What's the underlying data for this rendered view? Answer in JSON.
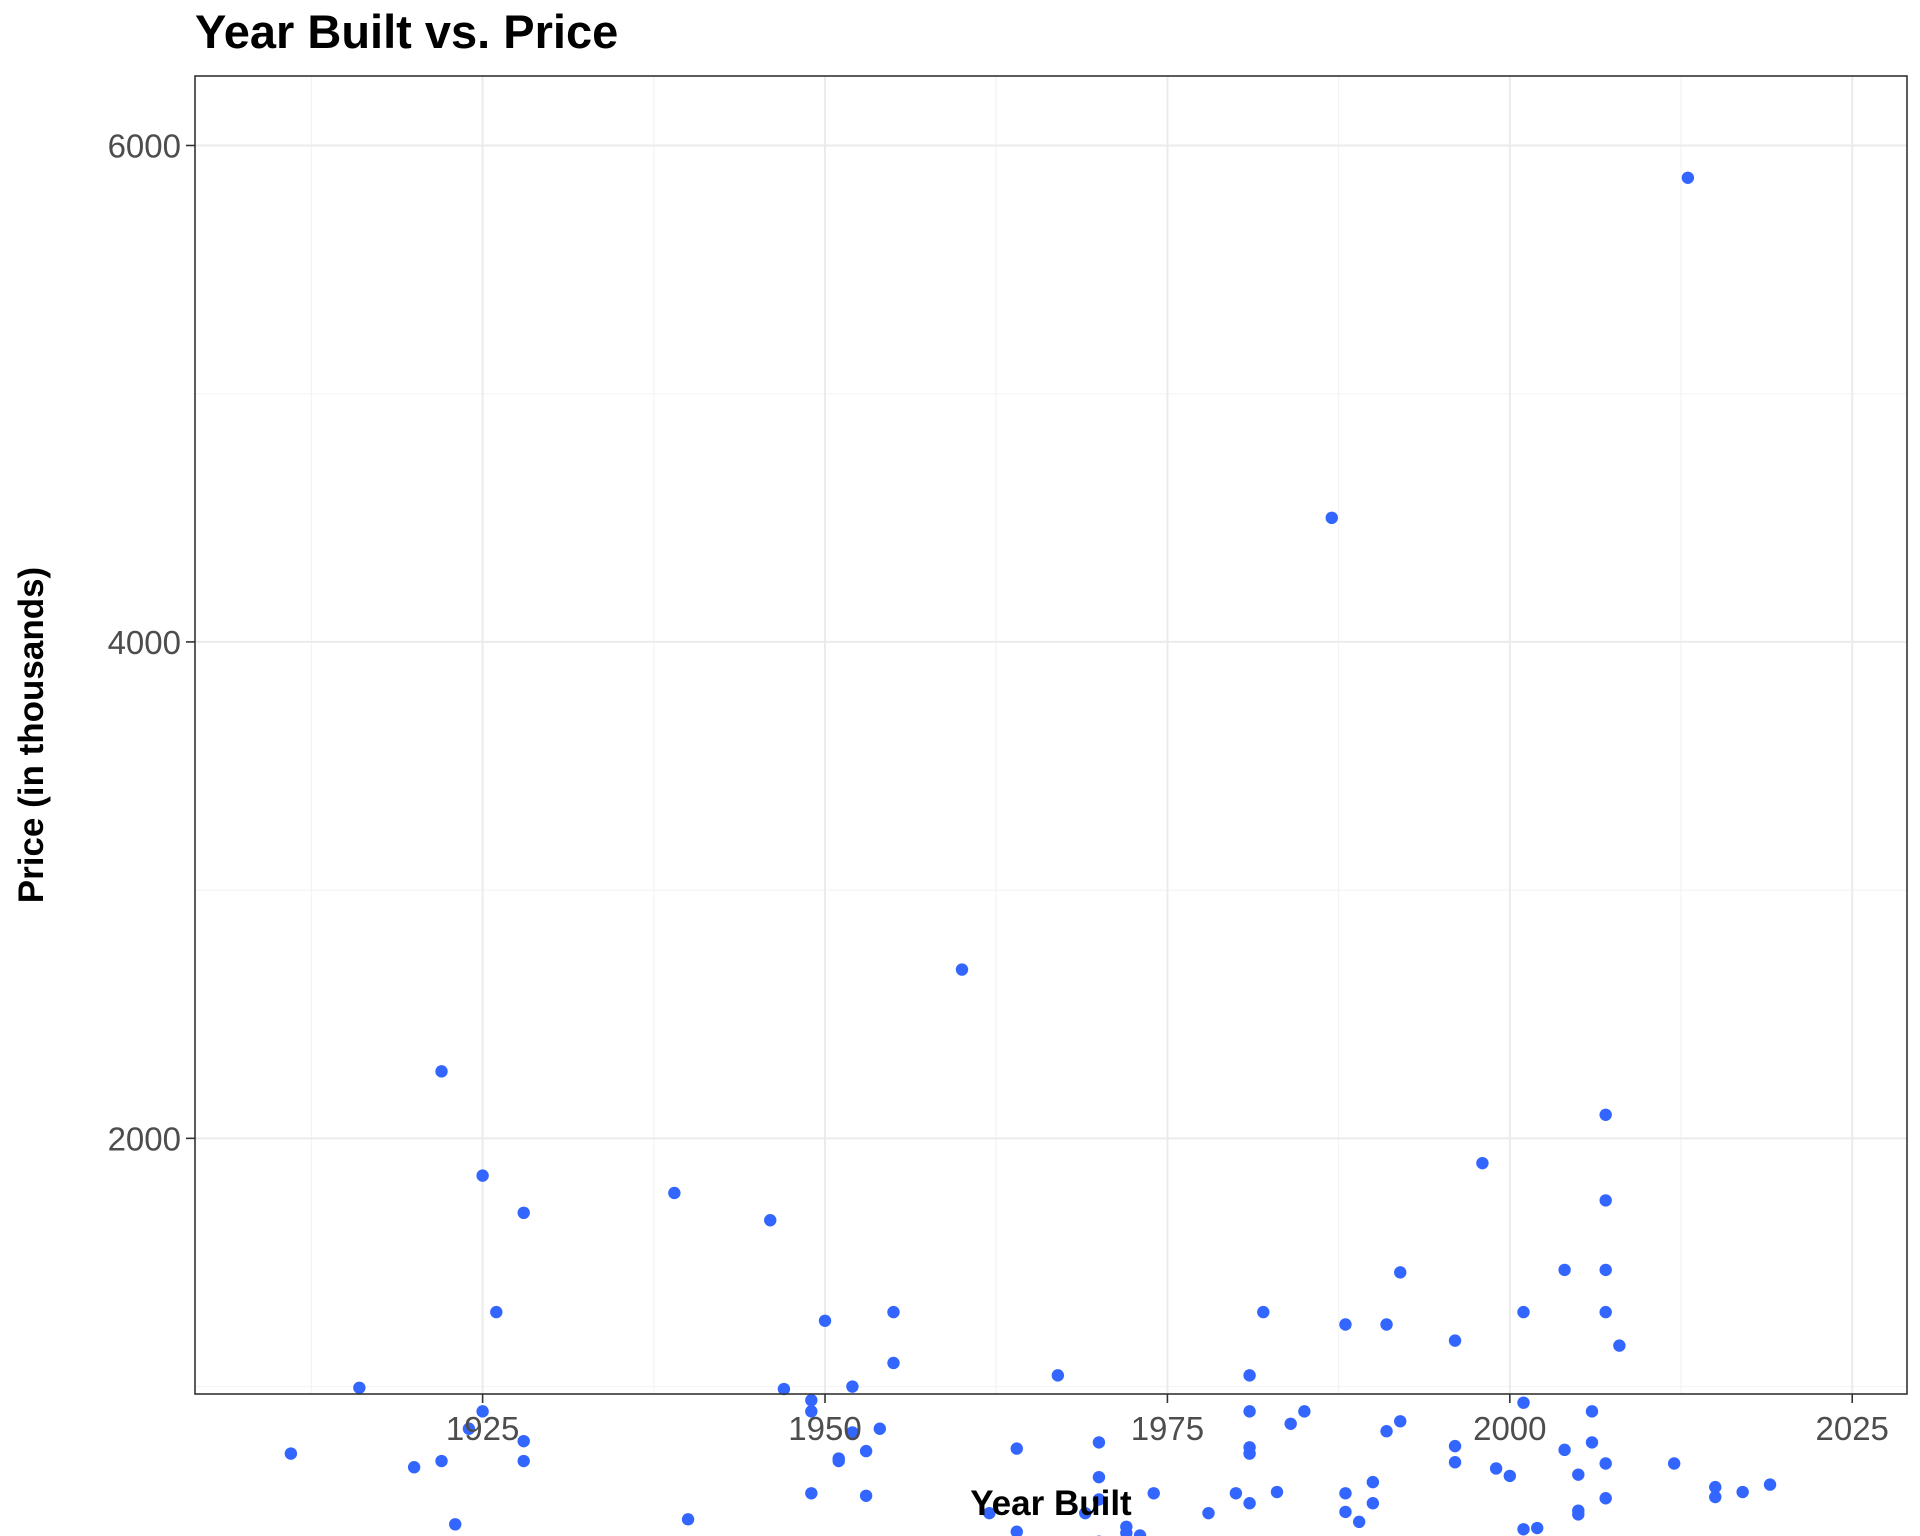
{
  "chart_data": {
    "type": "scatter",
    "title": "Year Built vs. Price",
    "xlabel": "Year Built",
    "ylabel": "Price (in thousands)",
    "xlim": [
      1904,
      2029
    ],
    "ylim": [
      970,
      6280
    ],
    "x_ticks": [
      1925,
      1950,
      1975,
      2000,
      2025
    ],
    "x_tick_labels": [
      "1925",
      "1950",
      "1975",
      "2000",
      "2025"
    ],
    "y_ticks": [
      2000,
      4000,
      6000
    ],
    "y_tick_labels": [
      "2000",
      "4000",
      "6000"
    ],
    "grid": true,
    "color": "#3366ff",
    "series": [
      {
        "points": [
          [
            1911,
            730
          ],
          [
            1916,
            995
          ],
          [
            1920,
            675
          ],
          [
            1922,
            2270
          ],
          [
            1922,
            700
          ],
          [
            1923,
            445
          ],
          [
            1924,
            830
          ],
          [
            1925,
            1850
          ],
          [
            1925,
            900
          ],
          [
            1926,
            1300
          ],
          [
            1928,
            1700
          ],
          [
            1928,
            780
          ],
          [
            1928,
            700
          ],
          [
            1939,
            1780
          ],
          [
            1940,
            465
          ],
          [
            1946,
            1670
          ],
          [
            1947,
            990
          ],
          [
            1949,
            945
          ],
          [
            1949,
            900
          ],
          [
            1949,
            570
          ],
          [
            1950,
            1265
          ],
          [
            1951,
            710
          ],
          [
            1951,
            700
          ],
          [
            1952,
            1000
          ],
          [
            1952,
            815
          ],
          [
            1953,
            740
          ],
          [
            1953,
            560
          ],
          [
            1954,
            830
          ],
          [
            1955,
            1300
          ],
          [
            1955,
            1095
          ],
          [
            1960,
            2680
          ],
          [
            1962,
            490
          ],
          [
            1964,
            750
          ],
          [
            1964,
            415
          ],
          [
            1967,
            1045
          ],
          [
            1969,
            490
          ],
          [
            1970,
            775
          ],
          [
            1970,
            635
          ],
          [
            1970,
            545
          ],
          [
            1970,
            375
          ],
          [
            1971,
            365
          ],
          [
            1972,
            435
          ],
          [
            1972,
            410
          ],
          [
            1972,
            385
          ],
          [
            1973,
            400
          ],
          [
            1973,
            360
          ],
          [
            1974,
            570
          ],
          [
            1978,
            490
          ],
          [
            1980,
            570
          ],
          [
            1981,
            1045
          ],
          [
            1981,
            900
          ],
          [
            1981,
            755
          ],
          [
            1981,
            730
          ],
          [
            1981,
            530
          ],
          [
            1982,
            1300
          ],
          [
            1983,
            575
          ],
          [
            1984,
            850
          ],
          [
            1985,
            900
          ],
          [
            1985,
            350
          ],
          [
            1987,
            4500
          ],
          [
            1988,
            1250
          ],
          [
            1988,
            570
          ],
          [
            1988,
            495
          ],
          [
            1989,
            455
          ],
          [
            1990,
            615
          ],
          [
            1990,
            530
          ],
          [
            1991,
            1250
          ],
          [
            1991,
            820
          ],
          [
            1992,
            1460
          ],
          [
            1992,
            860
          ],
          [
            1996,
            1185
          ],
          [
            1996,
            760
          ],
          [
            1996,
            695
          ],
          [
            1998,
            1900
          ],
          [
            1999,
            670
          ],
          [
            2000,
            640
          ],
          [
            2001,
            1300
          ],
          [
            2001,
            935
          ],
          [
            2001,
            425
          ],
          [
            2002,
            430
          ],
          [
            2004,
            1470
          ],
          [
            2004,
            745
          ],
          [
            2005,
            645
          ],
          [
            2005,
            500
          ],
          [
            2005,
            485
          ],
          [
            2006,
            900
          ],
          [
            2006,
            775
          ],
          [
            2007,
            2095
          ],
          [
            2007,
            1750
          ],
          [
            2007,
            1470
          ],
          [
            2007,
            1300
          ],
          [
            2007,
            690
          ],
          [
            2007,
            550
          ],
          [
            2008,
            1165
          ],
          [
            2012,
            690
          ],
          [
            2013,
            5870
          ],
          [
            2015,
            595
          ],
          [
            2015,
            555
          ],
          [
            2017,
            575
          ],
          [
            2019,
            605
          ]
        ]
      }
    ]
  }
}
